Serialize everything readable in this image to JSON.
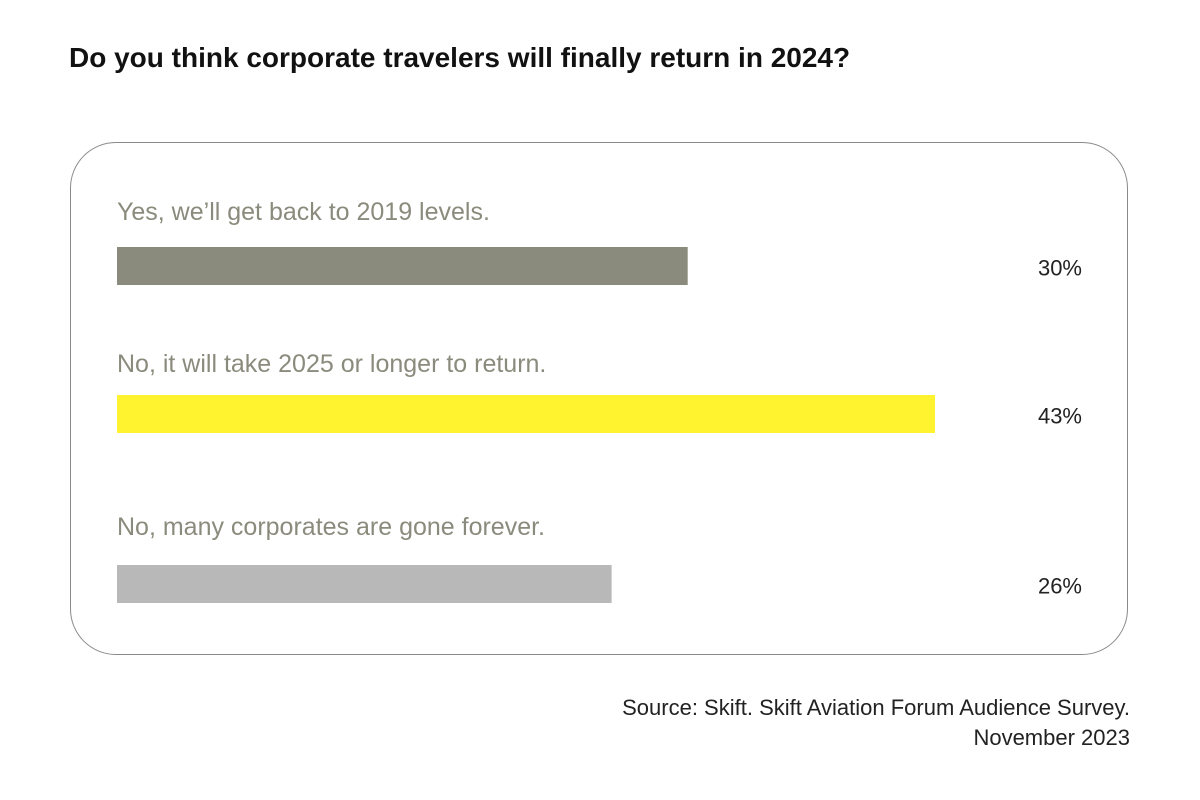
{
  "title": "Do you think corporate travelers will finally return in 2024?",
  "source": {
    "line1": "Source: Skift. Skift Aviation Forum Audience Survey.",
    "line2": "November 2023"
  },
  "chart_data": {
    "type": "bar",
    "orientation": "horizontal",
    "title": "Do you think corporate travelers will finally return in 2024?",
    "categories": [
      "Yes, we’ll get back to 2019 levels.",
      "No, it will take 2025 or longer to return.",
      "No, many corporates are gone forever."
    ],
    "values": [
      30,
      43,
      26
    ],
    "value_labels": [
      "30%",
      "43%",
      "26%"
    ],
    "unit": "%",
    "colors": [
      "#8b8b7d",
      "#fff22f",
      "#b8b8b8"
    ],
    "label_color": "#8b8b7d",
    "xlim": [
      0,
      43
    ],
    "grid": false,
    "legend": "none"
  }
}
